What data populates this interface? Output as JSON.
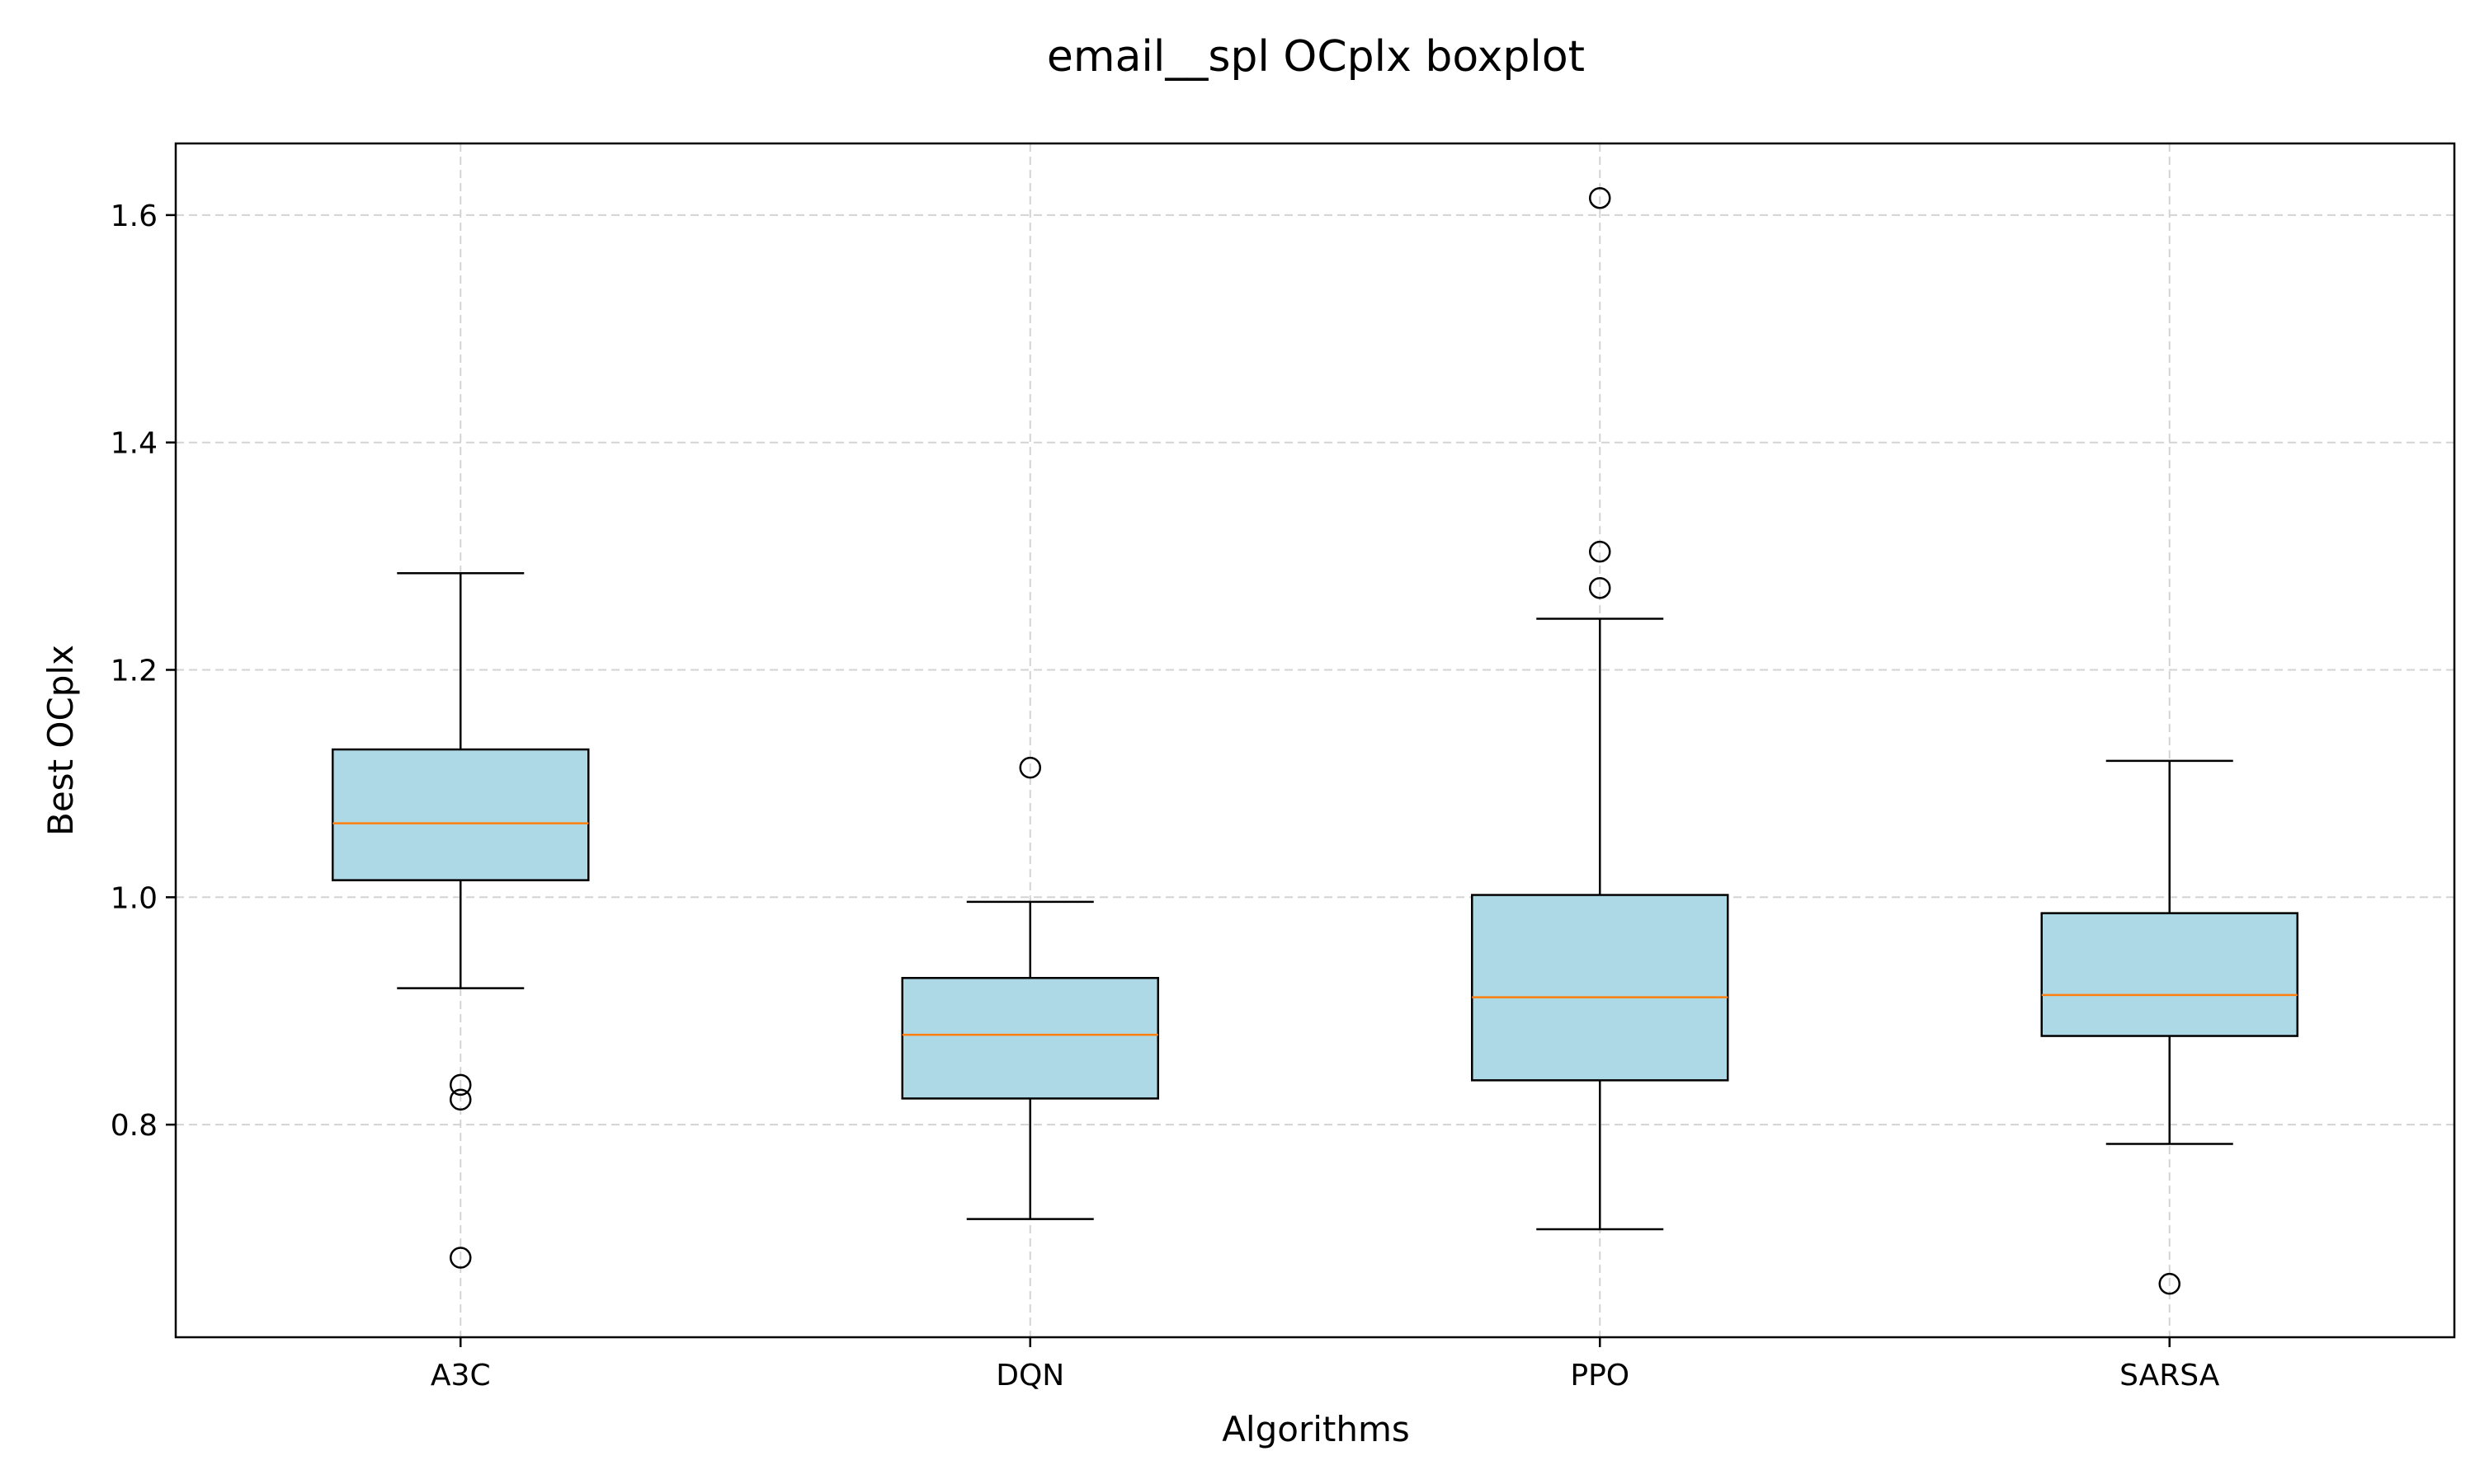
{
  "chart_data": {
    "type": "box",
    "title": "email__spl OCplx boxplot",
    "xlabel": "Algorithms",
    "ylabel": "Best OCplx",
    "ylim": [
      0.613,
      1.663
    ],
    "yticks": [
      0.8,
      1.0,
      1.2,
      1.4,
      1.6
    ],
    "ytick_labels": [
      "0.8",
      "1.0",
      "1.2",
      "1.4",
      "1.6"
    ],
    "grid": true,
    "categories": [
      "A3C",
      "DQN",
      "PPO",
      "SARSA"
    ],
    "boxes": [
      {
        "name": "A3C",
        "whisker_low": 0.92,
        "q1": 1.015,
        "median": 1.065,
        "q3": 1.13,
        "whisker_high": 1.285,
        "outliers": [
          0.835,
          0.822,
          0.683
        ]
      },
      {
        "name": "DQN",
        "whisker_low": 0.717,
        "q1": 0.823,
        "median": 0.879,
        "q3": 0.929,
        "whisker_high": 0.996,
        "outliers": [
          1.114
        ]
      },
      {
        "name": "PPO",
        "whisker_low": 0.708,
        "q1": 0.839,
        "median": 0.912,
        "q3": 1.002,
        "whisker_high": 1.245,
        "outliers": [
          1.615,
          1.304,
          1.272
        ]
      },
      {
        "name": "SARSA",
        "whisker_low": 0.783,
        "q1": 0.878,
        "median": 0.914,
        "q3": 0.986,
        "whisker_high": 1.12,
        "outliers": [
          0.66
        ]
      }
    ],
    "colors": {
      "box_fill": "#add8e6",
      "median": "#ff7f0e",
      "edge": "#000000",
      "grid": "#d3d3d3"
    }
  }
}
